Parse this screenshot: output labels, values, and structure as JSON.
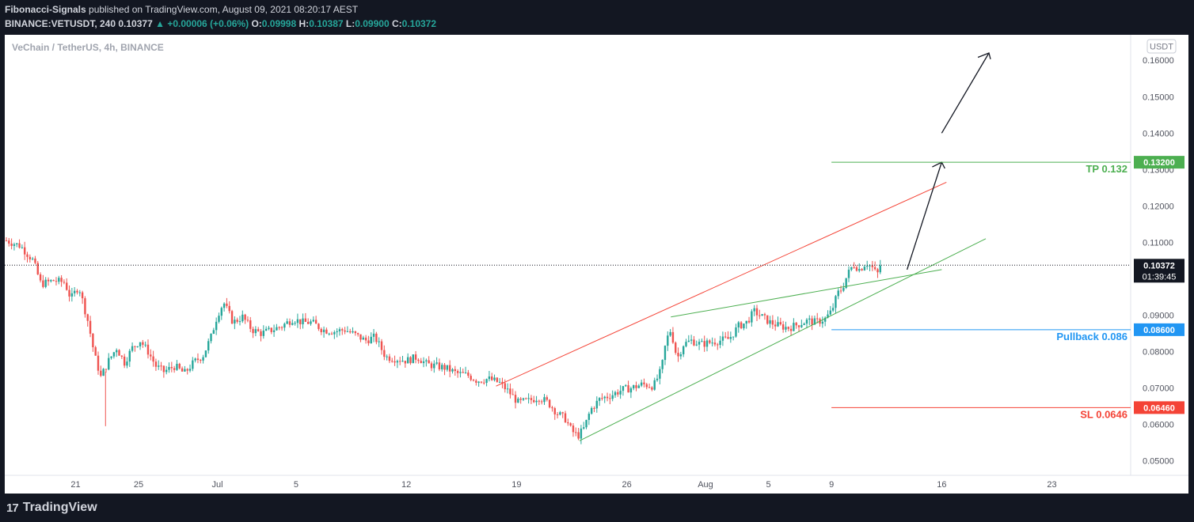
{
  "header": {
    "author": "Fibonacci-Signals",
    "published": "published on TradingView.com, August 09, 2021 08:20:17 AEST",
    "symbol_line": "BINANCE:VETUSDT, 240",
    "last": "0.10377",
    "change": "+0.00006 (+0.06%)",
    "o_label": "O:",
    "o_val": "0.09998",
    "h_label": "H:",
    "h_val": "0.10387",
    "l_label": "L:",
    "l_val": "0.09900",
    "c_label": "C:",
    "c_val": "0.10372"
  },
  "footer": {
    "logo_text": "TradingView",
    "logo_mark": "17"
  },
  "colors": {
    "up": "#26a69a",
    "down": "#ef5350",
    "red_line": "#f44336",
    "green_line": "#4caf50",
    "blue_line": "#2196f3"
  },
  "chart_data": {
    "type": "candlestick",
    "title": "VeChain / TetherUS, 4h, BINANCE",
    "currency_badge": "USDT",
    "ylim": [
      0.046,
      0.167
    ],
    "y_ticks": [
      "0.16000",
      "0.15000",
      "0.14000",
      "0.13000",
      "0.12000",
      "0.11000",
      "0.10000",
      "0.09000",
      "0.08000",
      "0.07000",
      "0.06000",
      "0.05000"
    ],
    "y_tick_values": [
      0.16,
      0.15,
      0.14,
      0.13,
      0.12,
      0.11,
      0.1,
      0.09,
      0.08,
      0.07,
      0.06,
      0.05
    ],
    "x_ticks": [
      {
        "label": "21",
        "day": 21
      },
      {
        "label": "25",
        "day": 25
      },
      {
        "label": "Jul",
        "day": 30
      },
      {
        "label": "5",
        "day": 35
      },
      {
        "label": "12",
        "day": 42
      },
      {
        "label": "19",
        "day": 49
      },
      {
        "label": "26",
        "day": 56
      },
      {
        "label": "Aug",
        "day": 61
      },
      {
        "label": "5",
        "day": 65
      },
      {
        "label": "9",
        "day": 69
      },
      {
        "label": "16",
        "day": 76
      },
      {
        "label": "23",
        "day": 83
      }
    ],
    "x_range_days": [
      16.5,
      88.0
    ],
    "price_path": [
      [
        16.6,
        0.1105
      ],
      [
        17.5,
        0.109
      ],
      [
        18.3,
        0.105
      ],
      [
        18.8,
        0.0985
      ],
      [
        19.6,
        0.0995
      ],
      [
        20.3,
        0.099
      ],
      [
        20.7,
        0.0945
      ],
      [
        21.2,
        0.098
      ],
      [
        21.8,
        0.088
      ],
      [
        22.2,
        0.079
      ],
      [
        22.6,
        0.073
      ],
      [
        23.1,
        0.0775
      ],
      [
        23.6,
        0.081
      ],
      [
        24.1,
        0.077
      ],
      [
        24.6,
        0.081
      ],
      [
        25.1,
        0.083
      ],
      [
        25.6,
        0.08
      ],
      [
        26.1,
        0.076
      ],
      [
        26.6,
        0.0745
      ],
      [
        27.3,
        0.076
      ],
      [
        27.9,
        0.074
      ],
      [
        28.5,
        0.077
      ],
      [
        29.1,
        0.079
      ],
      [
        29.6,
        0.084
      ],
      [
        30.0,
        0.09
      ],
      [
        30.4,
        0.0935
      ],
      [
        31.0,
        0.088
      ],
      [
        31.6,
        0.0895
      ],
      [
        32.2,
        0.086
      ],
      [
        32.8,
        0.085
      ],
      [
        33.5,
        0.086
      ],
      [
        34.1,
        0.087
      ],
      [
        34.8,
        0.089
      ],
      [
        35.4,
        0.088
      ],
      [
        36.0,
        0.088
      ],
      [
        36.7,
        0.086
      ],
      [
        37.4,
        0.0855
      ],
      [
        38.1,
        0.086
      ],
      [
        38.8,
        0.0845
      ],
      [
        39.4,
        0.083
      ],
      [
        40.0,
        0.084
      ],
      [
        40.7,
        0.0785
      ],
      [
        41.4,
        0.078
      ],
      [
        42.0,
        0.0775
      ],
      [
        42.7,
        0.0785
      ],
      [
        43.3,
        0.0765
      ],
      [
        43.9,
        0.076
      ],
      [
        44.5,
        0.0755
      ],
      [
        45.2,
        0.074
      ],
      [
        45.9,
        0.0735
      ],
      [
        46.5,
        0.072
      ],
      [
        47.2,
        0.0725
      ],
      [
        47.9,
        0.0715
      ],
      [
        48.5,
        0.069
      ],
      [
        49.1,
        0.066
      ],
      [
        49.8,
        0.0665
      ],
      [
        50.4,
        0.0675
      ],
      [
        51.0,
        0.066
      ],
      [
        51.6,
        0.063
      ],
      [
        52.1,
        0.0615
      ],
      [
        52.5,
        0.0582
      ],
      [
        52.9,
        0.0568
      ],
      [
        53.3,
        0.059
      ],
      [
        53.7,
        0.064
      ],
      [
        54.3,
        0.067
      ],
      [
        55.0,
        0.068
      ],
      [
        55.7,
        0.0695
      ],
      [
        56.3,
        0.07
      ],
      [
        57.0,
        0.071
      ],
      [
        57.7,
        0.0705
      ],
      [
        58.2,
        0.075
      ],
      [
        58.5,
        0.083
      ],
      [
        58.8,
        0.086
      ],
      [
        59.2,
        0.078
      ],
      [
        59.6,
        0.082
      ],
      [
        60.1,
        0.083
      ],
      [
        60.7,
        0.082
      ],
      [
        61.3,
        0.0825
      ],
      [
        61.9,
        0.083
      ],
      [
        62.5,
        0.0835
      ],
      [
        63.1,
        0.087
      ],
      [
        63.6,
        0.088
      ],
      [
        64.1,
        0.091
      ],
      [
        64.6,
        0.0895
      ],
      [
        65.1,
        0.088
      ],
      [
        65.7,
        0.087
      ],
      [
        66.3,
        0.0865
      ],
      [
        66.9,
        0.0875
      ],
      [
        67.5,
        0.0885
      ],
      [
        68.0,
        0.088
      ],
      [
        68.6,
        0.089
      ],
      [
        69.0,
        0.091
      ],
      [
        69.4,
        0.096
      ],
      [
        69.7,
        0.0975
      ],
      [
        70.0,
        0.101
      ],
      [
        70.4,
        0.104
      ],
      [
        70.8,
        0.1025
      ],
      [
        71.2,
        0.1045
      ],
      [
        71.6,
        0.103
      ],
      [
        71.9,
        0.101
      ],
      [
        72.1,
        0.1037
      ]
    ],
    "last_price": "0.10372",
    "countdown": "01:39:45",
    "levels": [
      {
        "name": "TP",
        "label": "TP 0.132",
        "value": 0.132,
        "badge": "0.13200",
        "color": "#4caf50"
      },
      {
        "name": "Pullback",
        "label": "Pullback 0.086",
        "value": 0.086,
        "badge": "0.08600",
        "color": "#2196f3"
      },
      {
        "name": "SL",
        "label": "SL 0.0646",
        "value": 0.0646,
        "badge": "0.06460",
        "color": "#f44336"
      }
    ]
  }
}
